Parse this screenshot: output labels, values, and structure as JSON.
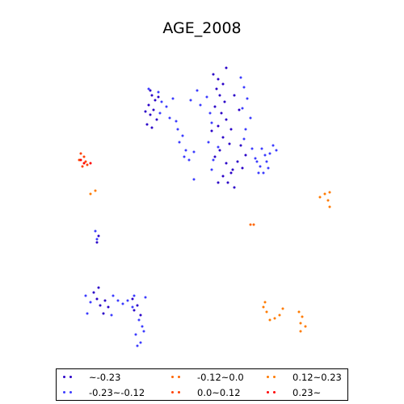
{
  "chart_data": {
    "type": "scatter",
    "title": "AGE_2008",
    "xlabel": "",
    "ylabel": "",
    "axes_visible": false,
    "grid": false,
    "legend_position": "bottom",
    "series": [
      {
        "name": "~-0.23",
        "color": "#2a00c8",
        "points": [
          [
            186,
            112
          ],
          [
            188,
            118
          ],
          [
            192,
            124
          ],
          [
            184,
            130
          ],
          [
            190,
            136
          ],
          [
            186,
            142
          ],
          [
            194,
            148
          ],
          [
            182,
            154
          ],
          [
            188,
            158
          ],
          [
            196,
            120
          ],
          [
            180,
            138
          ],
          [
            264,
            92
          ],
          [
            270,
            98
          ],
          [
            276,
            104
          ],
          [
            268,
            110
          ],
          [
            272,
            118
          ],
          [
            278,
            126
          ],
          [
            266,
            132
          ],
          [
            274,
            140
          ],
          [
            280,
            148
          ],
          [
            270,
            156
          ],
          [
            262,
            162
          ],
          [
            276,
            170
          ],
          [
            284,
            178
          ],
          [
            272,
            186
          ],
          [
            266,
            194
          ],
          [
            280,
            202
          ],
          [
            288,
            210
          ],
          [
            276,
            218
          ],
          [
            282,
            226
          ],
          [
            290,
            232
          ],
          [
            270,
            226
          ],
          [
            294,
            200
          ],
          [
            286,
            160
          ],
          [
            296,
            136
          ],
          [
            298,
            180
          ],
          [
            290,
            118
          ],
          [
            280,
            84
          ],
          [
            286,
            214
          ],
          [
            300,
            208
          ],
          [
            304,
            192
          ],
          [
            116,
            362
          ],
          [
            120,
            370
          ],
          [
            124,
            378
          ],
          [
            130,
            372
          ],
          [
            134,
            380
          ],
          [
            128,
            388
          ],
          [
            122,
            356
          ],
          [
            164,
            370
          ],
          [
            170,
            378
          ],
          [
            166,
            384
          ],
          [
            174,
            390
          ],
          [
            122,
            292
          ],
          [
            120,
            300
          ]
        ]
      },
      {
        "name": "-0.23~-0.12",
        "color": "#3c3cff",
        "points": [
          [
            184,
            110
          ],
          [
            196,
            114
          ],
          [
            200,
            126
          ],
          [
            206,
            132
          ],
          [
            198,
            140
          ],
          [
            210,
            146
          ],
          [
            218,
            150
          ],
          [
            220,
            160
          ],
          [
            226,
            168
          ],
          [
            222,
            176
          ],
          [
            230,
            186
          ],
          [
            228,
            194
          ],
          [
            234,
            198
          ],
          [
            240,
            188
          ],
          [
            214,
            122
          ],
          [
            244,
            112
          ],
          [
            236,
            124
          ],
          [
            248,
            130
          ],
          [
            256,
            120
          ],
          [
            260,
            140
          ],
          [
            262,
            152
          ],
          [
            258,
            176
          ],
          [
            264,
            198
          ],
          [
            262,
            210
          ],
          [
            270,
            182
          ],
          [
            298,
            96
          ],
          [
            302,
            108
          ],
          [
            306,
            122
          ],
          [
            300,
            134
          ],
          [
            310,
            146
          ],
          [
            304,
            160
          ],
          [
            302,
            172
          ],
          [
            312,
            184
          ],
          [
            316,
            196
          ],
          [
            322,
            206
          ],
          [
            326,
            214
          ],
          [
            330,
            200
          ],
          [
            334,
            190
          ],
          [
            338,
            180
          ],
          [
            342,
            186
          ],
          [
            324,
            184
          ],
          [
            328,
            192
          ],
          [
            332,
            208
          ],
          [
            320,
            214
          ],
          [
            318,
            200
          ],
          [
            240,
            222
          ],
          [
            106,
            366
          ],
          [
            112,
            374
          ],
          [
            108,
            388
          ],
          [
            140,
            366
          ],
          [
            146,
            372
          ],
          [
            152,
            376
          ],
          [
            138,
            390
          ],
          [
            158,
            372
          ],
          [
            164,
            380
          ],
          [
            172,
            396
          ],
          [
            176,
            404
          ],
          [
            168,
            414
          ],
          [
            174,
            424
          ],
          [
            178,
            410
          ],
          [
            170,
            428
          ],
          [
            166,
            366
          ],
          [
            180,
            368
          ],
          [
            118,
            286
          ],
          [
            120,
            296
          ]
        ]
      },
      {
        "name": "-0.12~0.0",
        "color": "#ff6600",
        "points": [
          [
            310,
            278
          ],
          [
            314,
            278
          ]
        ]
      },
      {
        "name": "0.0~0.12",
        "color": "#ff4000",
        "points": [
          [
            100,
            190
          ],
          [
            104,
            194
          ],
          [
            98,
            198
          ],
          [
            106,
            200
          ],
          [
            102,
            206
          ],
          [
            108,
            204
          ]
        ]
      },
      {
        "name": "0.12~0.23",
        "color": "#ff7a00",
        "points": [
          [
            112,
            240
          ],
          [
            118,
            236
          ],
          [
            396,
            244
          ],
          [
            402,
            240
          ],
          [
            408,
            238
          ],
          [
            406,
            248
          ],
          [
            408,
            256
          ],
          [
            328,
            374
          ],
          [
            330,
            386
          ],
          [
            334,
            396
          ],
          [
            340,
            394
          ],
          [
            346,
            390
          ],
          [
            350,
            382
          ],
          [
            326,
            380
          ],
          [
            370,
            386
          ],
          [
            374,
            392
          ],
          [
            372,
            400
          ],
          [
            378,
            404
          ],
          [
            372,
            410
          ]
        ]
      },
      {
        "name": "0.23~",
        "color": "#ff0000",
        "points": [
          [
            100,
            198
          ],
          [
            104,
            202
          ],
          [
            112,
            202
          ]
        ]
      }
    ]
  }
}
